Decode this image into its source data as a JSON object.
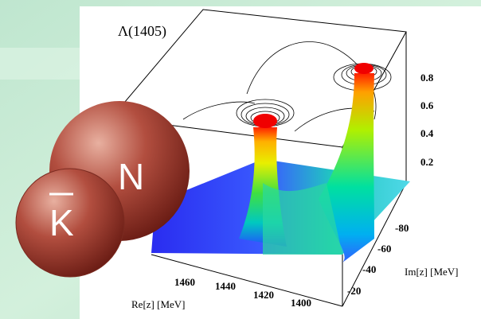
{
  "figure": {
    "title": "Λ(1405)",
    "z_ticks": [
      "0.8",
      "0.6",
      "0.4",
      "0.2"
    ],
    "im_ticks": [
      "-80",
      "-60",
      "-40",
      "-20"
    ],
    "re_ticks": [
      "1460",
      "1440",
      "1420",
      "1400"
    ],
    "re_label": "Re[z] [MeV]",
    "im_label": "Im[z] [MeV]",
    "ball_n": "N",
    "ball_k": "K"
  }
}
